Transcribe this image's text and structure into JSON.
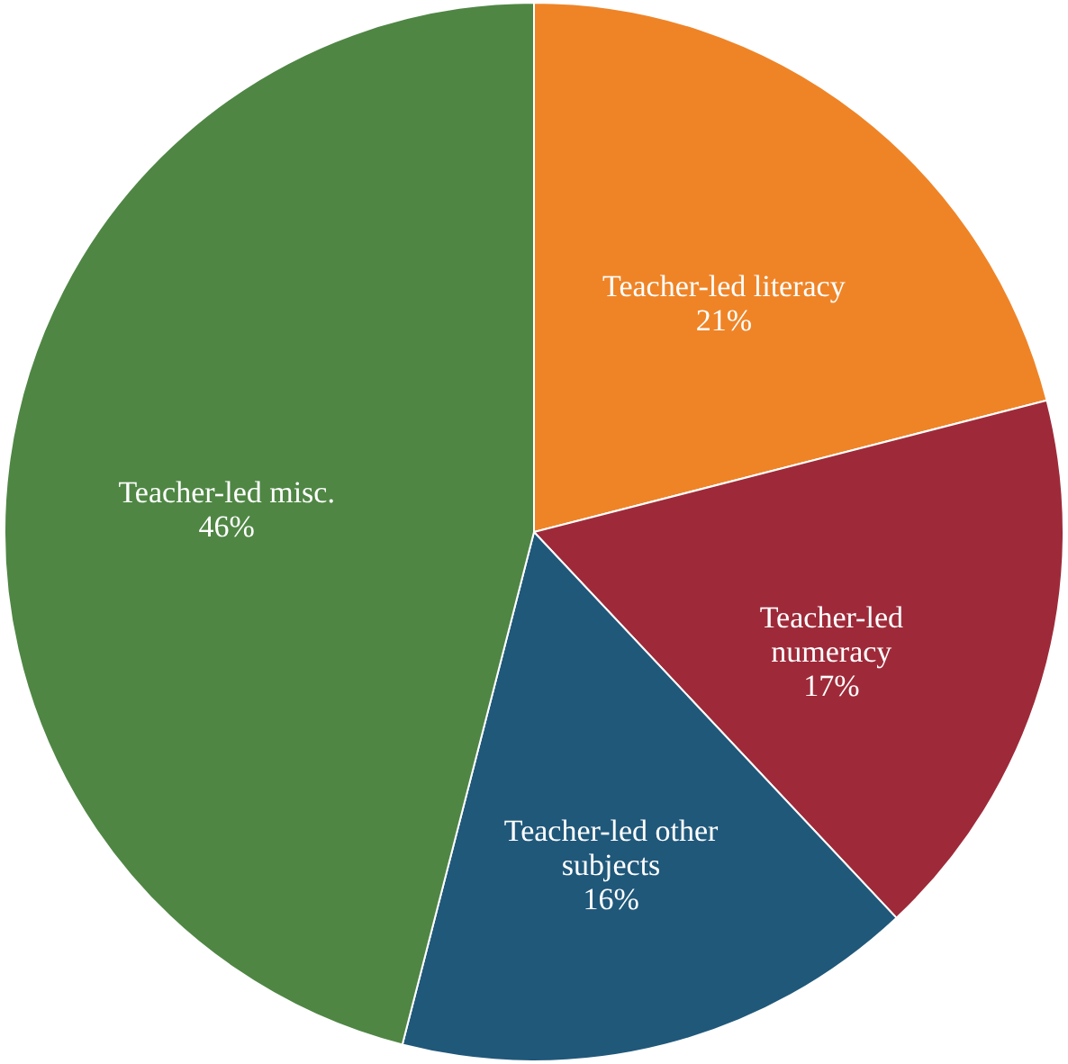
{
  "chart_data": {
    "type": "pie",
    "categories": [
      "Teacher-led literacy",
      "Teacher-led numeracy",
      "Teacher-led other subjects",
      "Teacher-led misc."
    ],
    "values": [
      21,
      17,
      16,
      46
    ],
    "value_labels": [
      "21%",
      "17%",
      "16%",
      "46%"
    ],
    "colors": [
      "#ef8427",
      "#9e2a39",
      "#20587a",
      "#4f8644"
    ],
    "legend": false
  }
}
